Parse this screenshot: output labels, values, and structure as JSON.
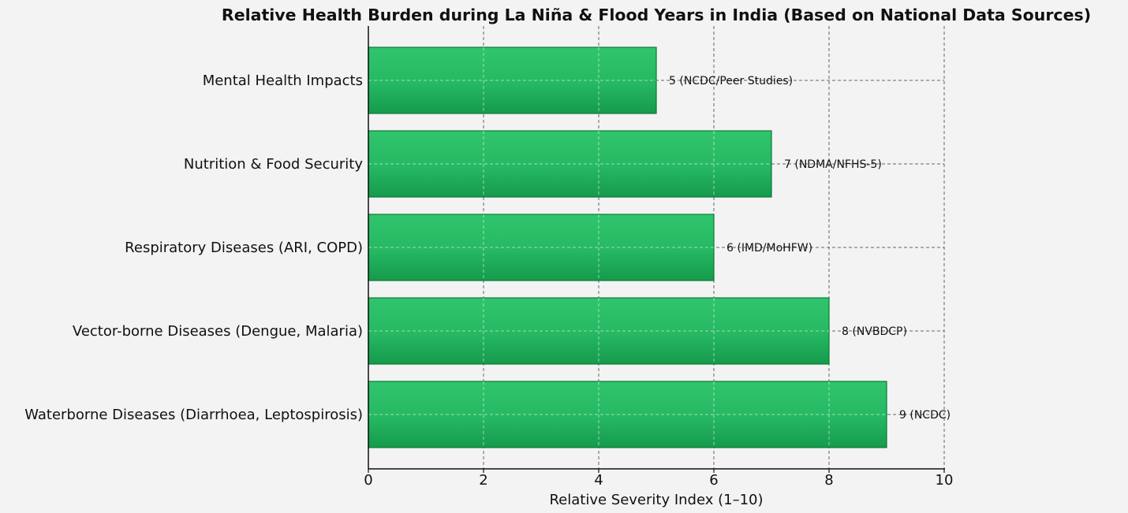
{
  "chart_data": {
    "type": "bar",
    "orientation": "horizontal",
    "title": "Relative Health Burden during La Niña & Flood Years in India (Based on National Data Sources)",
    "xlabel": "Relative Severity Index (1–10)",
    "ylabel": "",
    "xlim": [
      0,
      10
    ],
    "xticks": [
      "0",
      "2",
      "4",
      "6",
      "8",
      "10"
    ],
    "categories": [
      "Waterborne Diseases (Diarrhoea, Leptospirosis)",
      "Vector-borne Diseases (Dengue, Malaria)",
      "Respiratory Diseases (ARI, COPD)",
      "Nutrition & Food Security",
      "Mental Health Impacts"
    ],
    "values": [
      9,
      8,
      6,
      7,
      5
    ],
    "data_labels": [
      "9 (NCDC)",
      "8 (NVBDCP)",
      "6 (IMD/MoHFW)",
      "7 (NDMA/NFHS-5)",
      "5 (NCDC/Peer Studies)"
    ],
    "grid": true,
    "bar_color": "#27b862",
    "bar_edge_color": "#0b7a38"
  }
}
